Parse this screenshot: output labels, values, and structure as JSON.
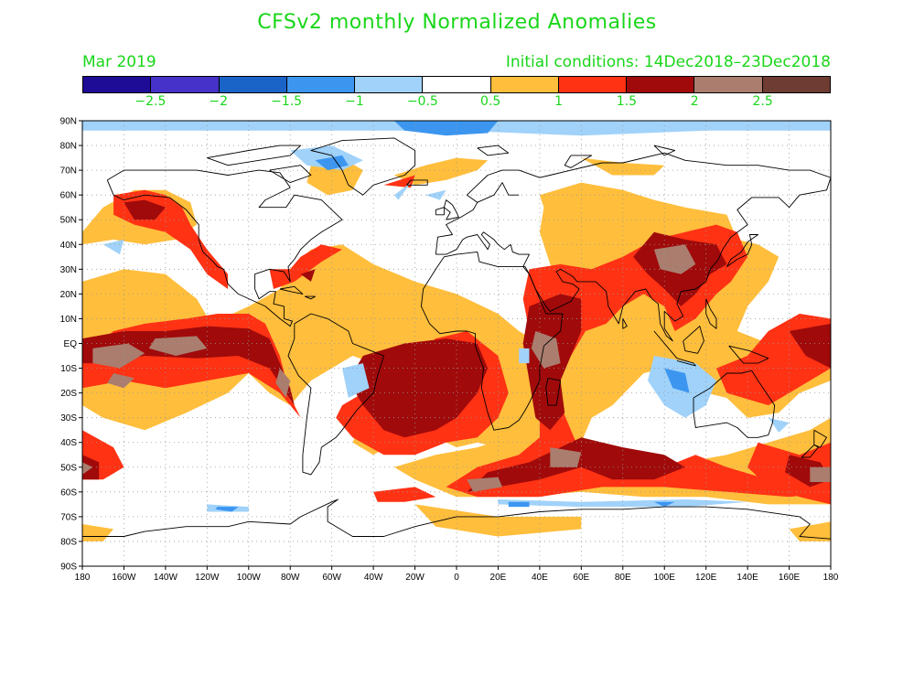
{
  "title": "CFSv2 monthly Normalized Anomalies",
  "subtitle_left": "Mar 2019",
  "subtitle_right": "Initial conditions: 14Dec2018–23Dec2018",
  "text_color": "#19d619",
  "colorbar": {
    "colors": [
      "#1e0b96",
      "#4632c8",
      "#1a64c8",
      "#3c96f0",
      "#a0d2fa",
      "#ffffff",
      "#ffbe3c",
      "#ff3214",
      "#a00a0a",
      "#aa7d6e",
      "#6e3c32"
    ],
    "labels": [
      "−2.5",
      "−2",
      "−1.5",
      "−1",
      "−0.5",
      "0.5",
      "1",
      "1.5",
      "2",
      "2.5"
    ]
  },
  "lat_labels": [
    "90N",
    "80N",
    "70N",
    "60N",
    "50N",
    "40N",
    "30N",
    "20N",
    "10N",
    "EQ",
    "10S",
    "20S",
    "30S",
    "40S",
    "50S",
    "60S",
    "70S",
    "80S",
    "90S"
  ],
  "lon_labels": [
    "180",
    "160W",
    "140W",
    "120W",
    "100W",
    "80W",
    "60W",
    "40W",
    "20W",
    "0",
    "20E",
    "40E",
    "60E",
    "80E",
    "100E",
    "120E",
    "140E",
    "160E",
    "180"
  ]
}
